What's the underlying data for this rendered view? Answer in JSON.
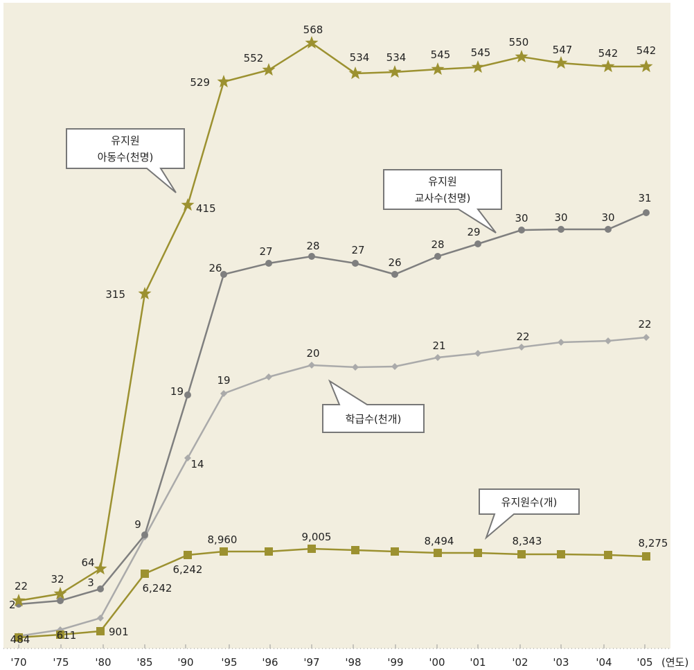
{
  "chart_data": {
    "type": "line",
    "x_unit_label": "(연도)",
    "categories": [
      "'70",
      "'75",
      "'80",
      "'85",
      "'90",
      "'95",
      "'96",
      "'97",
      "'98",
      "'99",
      "'00",
      "'01",
      "'02",
      "'03",
      "'04",
      "'05"
    ],
    "background": "#f2eedf",
    "grid": false,
    "legend": "callouts",
    "series": [
      {
        "name": "유지원 아동수(천명)",
        "name_lines": [
          "유지원",
          "아동수(천명)"
        ],
        "marker": "star",
        "color": "#9c9130",
        "values": [
          22,
          32,
          64,
          315,
          415,
          529,
          552,
          568,
          534,
          534,
          545,
          545,
          550,
          547,
          542,
          542
        ],
        "labels": [
          "22",
          "32",
          "64",
          "315",
          "415",
          "529",
          "552",
          "568",
          "534",
          "534",
          "545",
          "545",
          "550",
          "547",
          "542",
          "542"
        ]
      },
      {
        "name": "유지원 교사수(천명)",
        "name_lines": [
          "유지원",
          "교사수(천명)"
        ],
        "marker": "circle",
        "color": "#7f7f7f",
        "values": [
          2,
          3,
          3,
          9,
          19,
          26,
          27,
          28,
          27,
          26,
          28,
          29,
          30,
          30,
          30,
          31
        ],
        "labels": [
          "2",
          "",
          "3",
          "9",
          "19",
          "26",
          "27",
          "28",
          "27",
          "26",
          "28",
          "29",
          "30",
          "30",
          "30",
          "31"
        ]
      },
      {
        "name": "학급수(천개)",
        "name_lines": [
          "학급수(천개)"
        ],
        "marker": "diamond",
        "color": "#aaaaaa",
        "values": [
          1,
          1.5,
          2.5,
          9,
          14,
          19,
          20,
          20,
          20,
          20,
          21,
          21,
          22,
          22,
          22,
          22
        ],
        "labels": [
          "",
          "",
          "",
          "",
          "14",
          "19",
          "",
          "20",
          "",
          "",
          "21",
          "",
          "22",
          "",
          "",
          "22"
        ]
      },
      {
        "name": "유지원수(개)",
        "name_lines": [
          "유지원수(개)"
        ],
        "marker": "square",
        "color": "#9c9130",
        "values": [
          484,
          611,
          901,
          6242,
          6242,
          8960,
          8960,
          9005,
          8960,
          8800,
          8494,
          8494,
          8343,
          8343,
          8300,
          8275
        ],
        "labels": [
          "484",
          "611",
          "901",
          "6,242",
          "6,242",
          "8,960",
          "",
          "9,005",
          "",
          "",
          "8,494",
          "",
          "8,343",
          "",
          "",
          "8,275"
        ]
      }
    ]
  }
}
